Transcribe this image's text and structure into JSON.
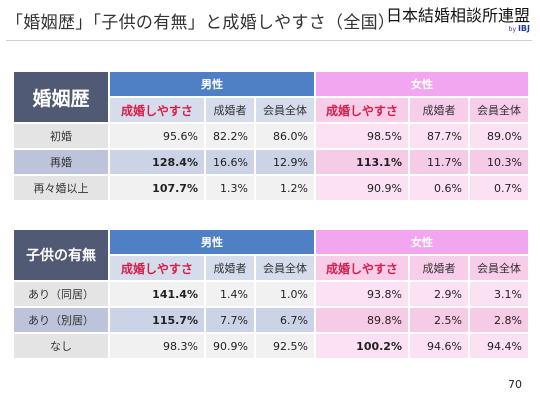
{
  "title": "「婚姻歴」「子供の有無」と成婚しやすさ（全国）",
  "brand": {
    "name": "日本結婚相談所連盟",
    "by": "by",
    "mark": "IBJ"
  },
  "groups": {
    "male": "男性",
    "female": "女性"
  },
  "columns": [
    "成婚しやすさ",
    "成婚者",
    "会員全体",
    "成婚しやすさ",
    "成婚者",
    "会員全体"
  ],
  "table1": {
    "header": "婚姻歴",
    "rows": [
      {
        "label": "初婚",
        "values": [
          "95.6%",
          "82.2%",
          "86.0%",
          "98.5%",
          "87.7%",
          "89.0%"
        ]
      },
      {
        "label": "再婚",
        "values": [
          "128.4%",
          "16.6%",
          "12.9%",
          "113.1%",
          "11.7%",
          "10.3%"
        ]
      },
      {
        "label": "再々婚以上",
        "values": [
          "107.7%",
          "1.3%",
          "1.2%",
          "90.9%",
          "0.6%",
          "0.7%"
        ]
      }
    ]
  },
  "table2": {
    "header": "子供の有無",
    "rows": [
      {
        "label": "あり（同居）",
        "values": [
          "141.4%",
          "1.4%",
          "1.0%",
          "93.8%",
          "2.9%",
          "3.1%"
        ]
      },
      {
        "label": "あり（別居）",
        "values": [
          "115.7%",
          "7.7%",
          "6.7%",
          "89.8%",
          "2.5%",
          "2.8%"
        ]
      },
      {
        "label": "なし",
        "values": [
          "98.3%",
          "90.9%",
          "92.5%",
          "100.2%",
          "94.6%",
          "94.4%"
        ]
      }
    ]
  },
  "page_number": "70"
}
